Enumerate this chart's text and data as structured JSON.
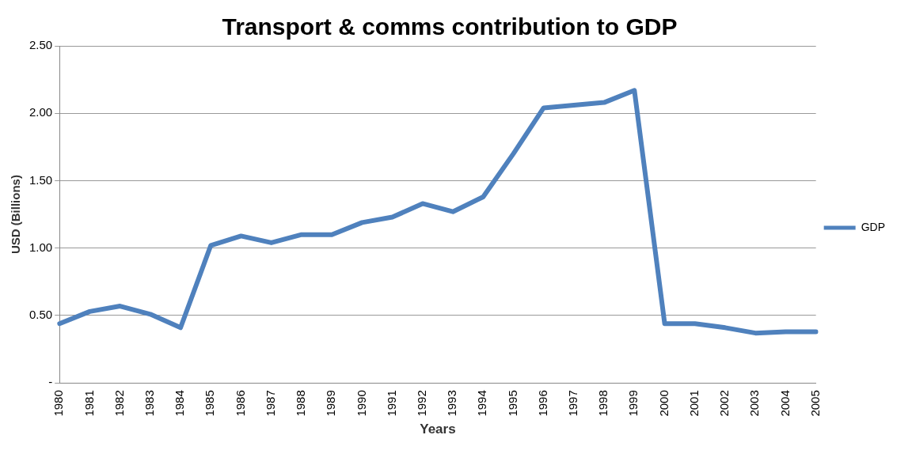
{
  "chart_data": {
    "type": "line",
    "title": "Transport & comms contribution to GDP",
    "xlabel": "Years",
    "ylabel": "USD (Billions)",
    "categories": [
      "1980",
      "1981",
      "1982",
      "1983",
      "1984",
      "1985",
      "1986",
      "1987",
      "1988",
      "1989",
      "1990",
      "1991",
      "1992",
      "1993",
      "1994",
      "1995",
      "1996",
      "1997",
      "1998",
      "1999",
      "2000",
      "2001",
      "2002",
      "2003",
      "2004",
      "2005"
    ],
    "series": [
      {
        "name": "GDP",
        "color": "#4f81bd",
        "values": [
          0.44,
          0.53,
          0.57,
          0.51,
          0.41,
          1.02,
          1.09,
          1.04,
          1.1,
          1.1,
          1.19,
          1.23,
          1.33,
          1.27,
          1.38,
          1.7,
          2.04,
          2.06,
          2.08,
          2.17,
          0.44,
          0.44,
          0.41,
          0.37,
          0.38,
          0.38
        ]
      }
    ],
    "ylim": [
      0,
      2.5
    ],
    "yticks": [
      {
        "value": 0,
        "label": "-"
      },
      {
        "value": 0.5,
        "label": "0.50"
      },
      {
        "value": 1,
        "label": "1.00"
      },
      {
        "value": 1.5,
        "label": "1.50"
      },
      {
        "value": 2,
        "label": "2.00"
      },
      {
        "value": 2.5,
        "label": "2.50"
      }
    ],
    "grid": "y",
    "legend": "right",
    "marker": "none",
    "line_style": "solid"
  }
}
